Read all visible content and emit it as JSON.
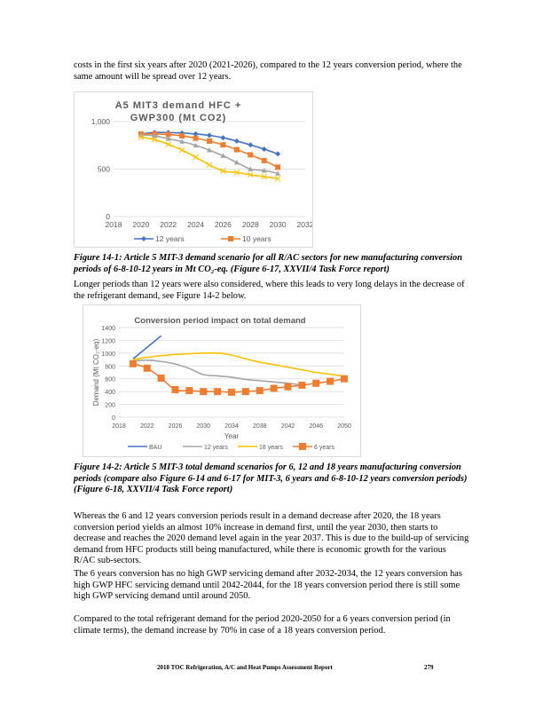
{
  "intro_text": "costs in the first six years after 2020 (2021-2026), compared to the 12 years conversion period, where the same amount will be spread over 12 years.",
  "figure1_caption": "Figure 14-1: Article 5 MIT-3 demand scenario for all R/AC sectors for new manufacturing conversion periods of 6-8-10-12 years in Mt CO₂-eq. (Figure 6-17, XXVII/4 Task Force report)",
  "para1": "Longer periods than 12 years were also considered, where this leads to very long delays in the decrease of the refrigerant demand, see Figure 14-2 below.",
  "figure2_caption": "Figure 14-2: Article 5 MIT-3 total demand scenarios for 6, 12 and 18 years manufacturing conversion periods (compare also Figure 6-14 and 6-17 for MIT-3, 6 years and 6-8-10-12 years conversion periods) (Figure 6-18, XXVII/4 Task Force report)",
  "para2": "Whereas the 6 and 12 years conversion periods result in a demand decrease after 2020, the 18 years conversion period yields an almost 10% increase in demand first, until the year 2030, then starts to decrease and reaches the 2020 demand level again in the year 2037. This is due to the build-up of servicing demand from HFC products still being manufactured, while there is economic growth for the various R/AC sub-sectors.",
  "para3": "The 6 years conversion has no high GWP servicing demand after 2032-2034, the 12 years conversion has high GWP HFC servicing demand until 2042-2044, for the 18 years conversion period there is still some high GWP servicing demand until around 2050.",
  "para4": "Compared to the total refrigerant demand for the period 2020-2050 for a 6 years conversion period (in climate terms), the demand increase by 70% in case of a 18 years conversion period.",
  "footer": {
    "title": "2018 TOC Refrigeration, A/C and Heat Pumps Assessment Report",
    "page_number": "279"
  },
  "chart_data": [
    {
      "type": "line",
      "title": "A5 MIT3 demand HFC + GWP300 (Mt CO2)",
      "xlabel": "",
      "ylabel": "",
      "xlim": [
        2018,
        2032
      ],
      "xticks": [
        2018,
        2020,
        2022,
        2024,
        2026,
        2028,
        2030,
        2032
      ],
      "ylim": [
        0,
        1000
      ],
      "yticks": [
        0,
        500,
        1000
      ],
      "ytick_labels": [
        "0",
        "500",
        "1,000"
      ],
      "grid": "horizontal",
      "legend": "bottom",
      "x": [
        2020,
        2021,
        2022,
        2023,
        2024,
        2025,
        2026,
        2027,
        2028,
        2029,
        2030
      ],
      "series": [
        {
          "name": "12 years",
          "color": "#4472c4",
          "marker": "diamond",
          "values": [
            870,
            885,
            885,
            880,
            870,
            855,
            830,
            795,
            755,
            710,
            660
          ]
        },
        {
          "name": "10 years",
          "color": "#ed7d31",
          "marker": "square",
          "values": [
            870,
            870,
            865,
            850,
            825,
            795,
            755,
            705,
            650,
            590,
            520
          ]
        },
        {
          "color": "#a5a5a5",
          "marker": "triangle",
          "values": [
            860,
            850,
            820,
            790,
            750,
            700,
            640,
            570,
            500,
            485,
            455
          ]
        },
        {
          "color": "#ffc000",
          "marker": "x",
          "values": [
            835,
            810,
            760,
            700,
            625,
            545,
            480,
            465,
            440,
            420,
            400
          ]
        }
      ]
    },
    {
      "type": "line",
      "title": "Conversion period impact on total demand",
      "xlabel": "Year",
      "ylabel": "Demand (Mt CO₂-eq)",
      "xlim": [
        2018,
        2050
      ],
      "xticks": [
        2018,
        2022,
        2026,
        2030,
        2034,
        2038,
        2042,
        2046,
        2050
      ],
      "ylim": [
        0,
        1400
      ],
      "yticks": [
        0,
        200,
        400,
        600,
        800,
        1000,
        1200,
        1400
      ],
      "grid": "horizontal",
      "legend": "bottom",
      "series": [
        {
          "name": "BAU",
          "color": "#4472c4",
          "marker": "none",
          "x": [
            2020,
            2024
          ],
          "values": [
            910,
            1270
          ]
        },
        {
          "name": "12 years",
          "color": "#a5a5a5",
          "marker": "none",
          "x": [
            2020,
            2022,
            2024,
            2026,
            2028,
            2030,
            2032,
            2034,
            2036,
            2038,
            2040,
            2042,
            2044
          ],
          "values": [
            880,
            890,
            870,
            830,
            760,
            665,
            645,
            625,
            590,
            570,
            550,
            530,
            500
          ]
        },
        {
          "name": "18 years",
          "color": "#ffc000",
          "marker": "none",
          "x": [
            2020,
            2022,
            2024,
            2026,
            2028,
            2030,
            2032,
            2034,
            2036,
            2038,
            2040,
            2042,
            2044,
            2046,
            2048,
            2050
          ],
          "values": [
            900,
            935,
            960,
            980,
            990,
            1000,
            1000,
            970,
            910,
            860,
            820,
            780,
            740,
            700,
            670,
            640
          ]
        },
        {
          "name": "6 years",
          "color": "#ed7d31",
          "marker": "square",
          "x": [
            2020,
            2022,
            2024,
            2026,
            2028,
            2030,
            2032,
            2034,
            2036,
            2038,
            2040,
            2042,
            2044,
            2046,
            2048,
            2050
          ],
          "values": [
            835,
            765,
            610,
            430,
            415,
            400,
            400,
            390,
            400,
            415,
            450,
            475,
            500,
            530,
            560,
            600
          ]
        }
      ]
    }
  ]
}
